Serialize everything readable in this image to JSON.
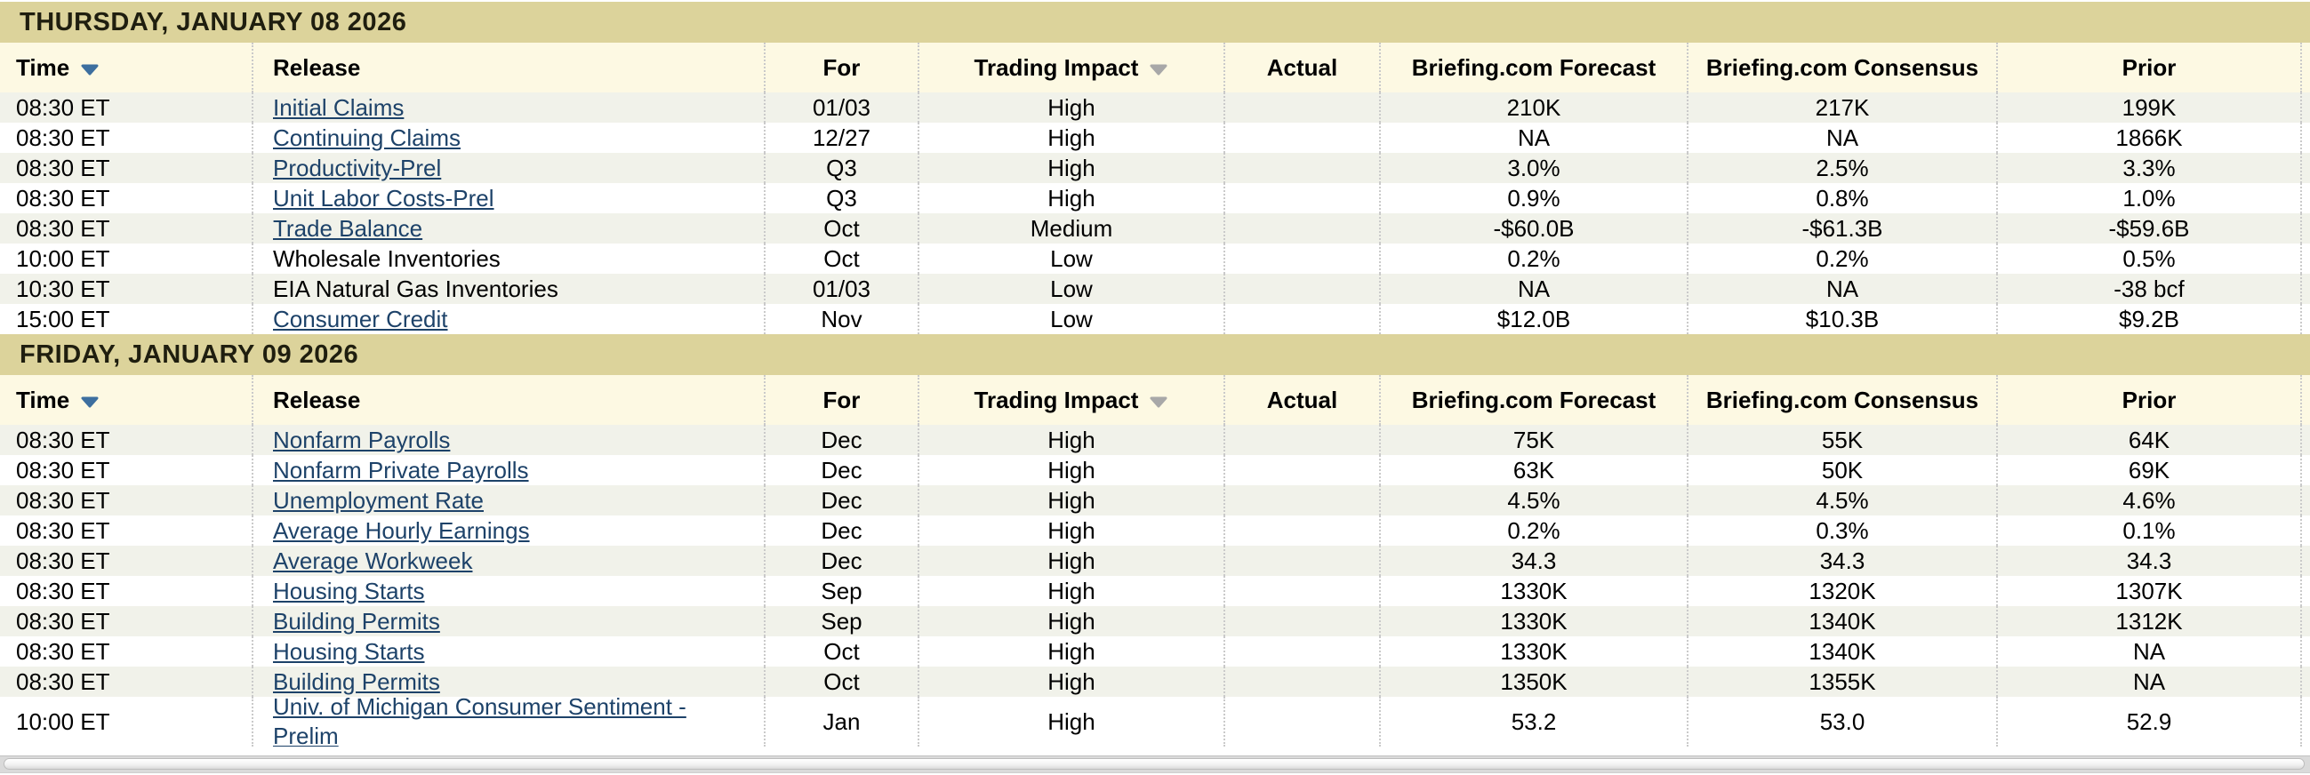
{
  "colors": {
    "date_band": "#dcd39b",
    "date_band_text": "#1f1e0f",
    "header_row_bg": "#fdf9e3",
    "row_alt_bg": "#f1f2ea",
    "link": "#1d4269",
    "sort_arrow_active": "#3d6f9f",
    "sort_arrow_inactive": "#a8a8a8",
    "separator": "#cacaca"
  },
  "table": {
    "columns": [
      {
        "key": "time",
        "label": "Time",
        "sort_arrow": true
      },
      {
        "key": "release",
        "label": "Release",
        "sort_arrow": false
      },
      {
        "key": "for",
        "label": "For",
        "sort_arrow": false
      },
      {
        "key": "impact",
        "label": "Trading Impact",
        "sort_arrow": true
      },
      {
        "key": "actual",
        "label": "Actual",
        "sort_arrow": false
      },
      {
        "key": "forecast",
        "label": "Briefing.com Forecast",
        "sort_arrow": false
      },
      {
        "key": "consensus",
        "label": "Briefing.com Consensus",
        "sort_arrow": false
      },
      {
        "key": "prior",
        "label": "Prior",
        "sort_arrow": false
      }
    ],
    "sections": [
      {
        "date": "THURSDAY, JANUARY 08 2026",
        "rows": [
          {
            "time": "08:30 ET",
            "release": "Initial Claims",
            "link": true,
            "for": "01/03",
            "impact": "High",
            "actual": "",
            "forecast": "210K",
            "consensus": "217K",
            "prior": "199K"
          },
          {
            "time": "08:30 ET",
            "release": "Continuing Claims",
            "link": true,
            "for": "12/27",
            "impact": "High",
            "actual": "",
            "forecast": "NA",
            "consensus": "NA",
            "prior": "1866K"
          },
          {
            "time": "08:30 ET",
            "release": "Productivity-Prel",
            "link": true,
            "for": "Q3",
            "impact": "High",
            "actual": "",
            "forecast": "3.0%",
            "consensus": "2.5%",
            "prior": "3.3%"
          },
          {
            "time": "08:30 ET",
            "release": "Unit Labor Costs-Prel",
            "link": true,
            "for": "Q3",
            "impact": "High",
            "actual": "",
            "forecast": "0.9%",
            "consensus": "0.8%",
            "prior": "1.0%"
          },
          {
            "time": "08:30 ET",
            "release": "Trade Balance",
            "link": true,
            "for": "Oct",
            "impact": "Medium",
            "actual": "",
            "forecast": "-$60.0B",
            "consensus": "-$61.3B",
            "prior": "-$59.6B"
          },
          {
            "time": "10:00 ET",
            "release": "Wholesale Inventories",
            "link": false,
            "for": "Oct",
            "impact": "Low",
            "actual": "",
            "forecast": "0.2%",
            "consensus": "0.2%",
            "prior": "0.5%"
          },
          {
            "time": "10:30 ET",
            "release": "EIA Natural Gas Inventories",
            "link": false,
            "for": "01/03",
            "impact": "Low",
            "actual": "",
            "forecast": "NA",
            "consensus": "NA",
            "prior": "-38 bcf"
          },
          {
            "time": "15:00 ET",
            "release": "Consumer Credit",
            "link": true,
            "for": "Nov",
            "impact": "Low",
            "actual": "",
            "forecast": "$12.0B",
            "consensus": "$10.3B",
            "prior": "$9.2B"
          }
        ]
      },
      {
        "date": "FRIDAY, JANUARY 09 2026",
        "rows": [
          {
            "time": "08:30 ET",
            "release": "Nonfarm Payrolls",
            "link": true,
            "for": "Dec",
            "impact": "High",
            "actual": "",
            "forecast": "75K",
            "consensus": "55K",
            "prior": "64K"
          },
          {
            "time": "08:30 ET",
            "release": "Nonfarm Private Payrolls",
            "link": true,
            "for": "Dec",
            "impact": "High",
            "actual": "",
            "forecast": "63K",
            "consensus": "50K",
            "prior": "69K"
          },
          {
            "time": "08:30 ET",
            "release": "Unemployment Rate",
            "link": true,
            "for": "Dec",
            "impact": "High",
            "actual": "",
            "forecast": "4.5%",
            "consensus": "4.5%",
            "prior": "4.6%"
          },
          {
            "time": "08:30 ET",
            "release": "Average Hourly Earnings",
            "link": true,
            "for": "Dec",
            "impact": "High",
            "actual": "",
            "forecast": "0.2%",
            "consensus": "0.3%",
            "prior": "0.1%"
          },
          {
            "time": "08:30 ET",
            "release": "Average Workweek",
            "link": true,
            "for": "Dec",
            "impact": "High",
            "actual": "",
            "forecast": "34.3",
            "consensus": "34.3",
            "prior": "34.3"
          },
          {
            "time": "08:30 ET",
            "release": "Housing Starts",
            "link": true,
            "for": "Sep",
            "impact": "High",
            "actual": "",
            "forecast": "1330K",
            "consensus": "1320K",
            "prior": "1307K"
          },
          {
            "time": "08:30 ET",
            "release": "Building Permits",
            "link": true,
            "for": "Sep",
            "impact": "High",
            "actual": "",
            "forecast": "1330K",
            "consensus": "1340K",
            "prior": "1312K"
          },
          {
            "time": "08:30 ET",
            "release": "Housing Starts",
            "link": true,
            "for": "Oct",
            "impact": "High",
            "actual": "",
            "forecast": "1330K",
            "consensus": "1340K",
            "prior": "NA"
          },
          {
            "time": "08:30 ET",
            "release": "Building Permits",
            "link": true,
            "for": "Oct",
            "impact": "High",
            "actual": "",
            "forecast": "1350K",
            "consensus": "1355K",
            "prior": "NA"
          },
          {
            "time": "10:00 ET",
            "release": "Univ. of Michigan Consumer Sentiment - Prelim",
            "link": true,
            "for": "Jan",
            "impact": "High",
            "actual": "",
            "forecast": "53.2",
            "consensus": "53.0",
            "prior": "52.9"
          }
        ]
      }
    ]
  }
}
